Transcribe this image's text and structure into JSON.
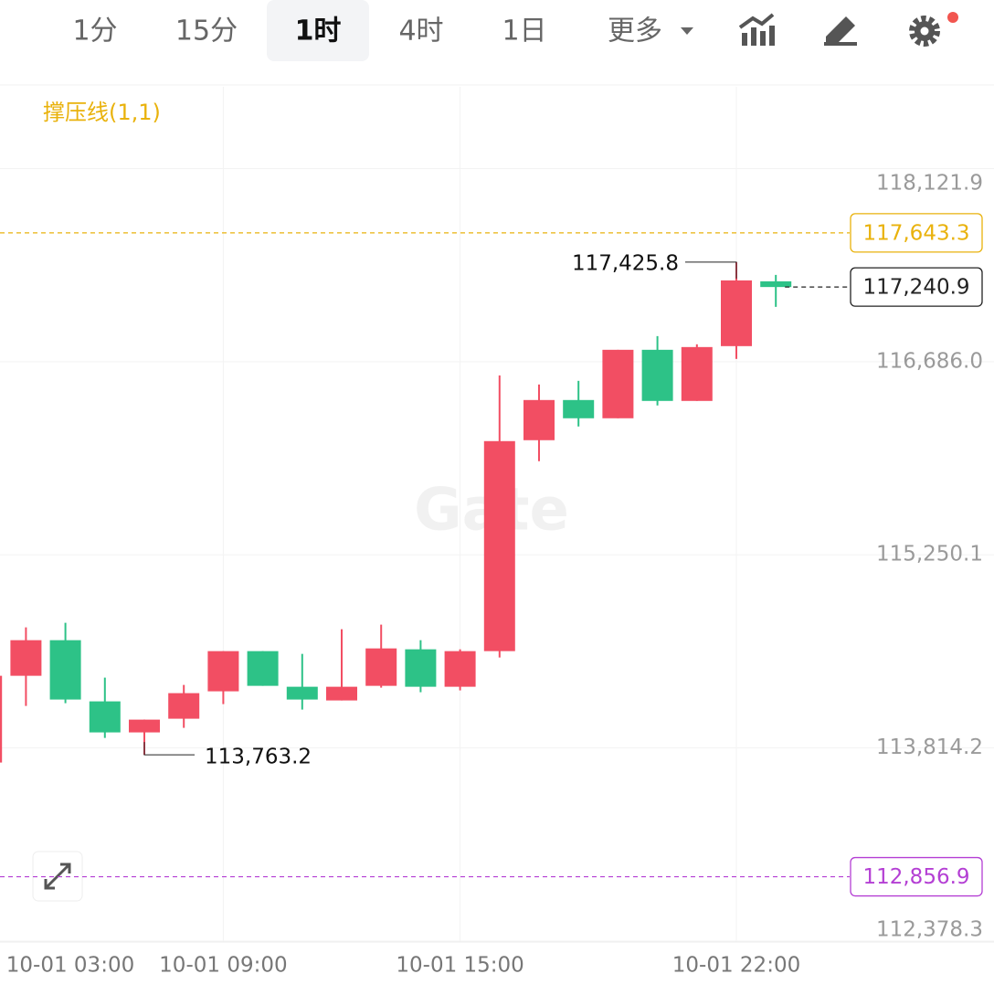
{
  "toolbar": {
    "tabs": [
      "1分",
      "15分",
      "1时",
      "4时",
      "1日",
      "更多"
    ],
    "active": 2
  },
  "chart_data": {
    "type": "candlestick",
    "indicator": "撑压线(1,1)",
    "watermark": "Gate",
    "categories": [
      "10-01 03:00",
      null,
      null,
      null,
      null,
      null,
      "10-01 09:00",
      null,
      null,
      null,
      null,
      null,
      "10-01 15:00",
      null,
      null,
      null,
      null,
      null,
      null,
      "10-01 22:00",
      null
    ],
    "open": [
      113705.7,
      114350.7,
      114615.4,
      114160.6,
      113929.8,
      114031.6,
      114235.3,
      114534.0,
      114269.2,
      114167.4,
      114276.0,
      114547.6,
      114269.2,
      114534.0,
      116102.2,
      116400.9,
      116265.2,
      116774.3,
      116394.1,
      116801.5,
      117283.5
    ],
    "high": [
      114350.7,
      114710.5,
      114744.4,
      114337.1,
      114024.8,
      114282.8,
      114534.0,
      114534.0,
      114513.6,
      114696.9,
      114730.9,
      114615.4,
      114547.6,
      116584.2,
      116516.3,
      116543.5,
      116774.3,
      116876.2,
      116815.1,
      117425.8,
      117331.0
    ],
    "low": [
      113705.7,
      114126.6,
      114147.0,
      113889.0,
      113763.2,
      113963.7,
      114140.2,
      114276.0,
      114099.5,
      114167.4,
      114262.4,
      114228.5,
      114242.1,
      114486.5,
      115946.1,
      116204.1,
      116265.2,
      116360.2,
      116394.1,
      116706.4,
      117093.4
    ],
    "close": [
      114350.7,
      114615.4,
      114174.2,
      113929.8,
      114024.8,
      114221.7,
      114534.0,
      114276.0,
      114174.2,
      114269.2,
      114554.3,
      114269.2,
      114534.0,
      116095.4,
      116400.9,
      116265.2,
      116774.3,
      116394.1,
      116794.7,
      117290.3,
      117240.9
    ],
    "up_color": "#f24e63",
    "down_color": "#2dc287",
    "ylim": [
      112378.3,
      118729.5
    ],
    "yticks": [
      {
        "value": 118121.9,
        "label": "118,121.9"
      },
      {
        "value": 116686.0,
        "label": "116,686.0"
      },
      {
        "value": 115250.1,
        "label": "115,250.1"
      },
      {
        "value": 113814.2,
        "label": "113,814.2"
      },
      {
        "value": 112378.3,
        "label": "112,378.3"
      }
    ],
    "grid": true,
    "price_lines": [
      {
        "value": 117643.3,
        "label": "117,643.3",
        "color": "#e9b20c",
        "style": "dashed"
      },
      {
        "value": 112856.9,
        "label": "112,856.9",
        "color": "#b43fd4",
        "style": "dashed"
      },
      {
        "value": 117240.9,
        "label": "117,240.9",
        "color": "#222222",
        "style": "dashed"
      }
    ],
    "annotations": [
      {
        "value": 117425.8,
        "label": "117,425.8",
        "index": 19
      },
      {
        "value": 113763.2,
        "label": "113,763.2",
        "index": 4
      }
    ]
  }
}
